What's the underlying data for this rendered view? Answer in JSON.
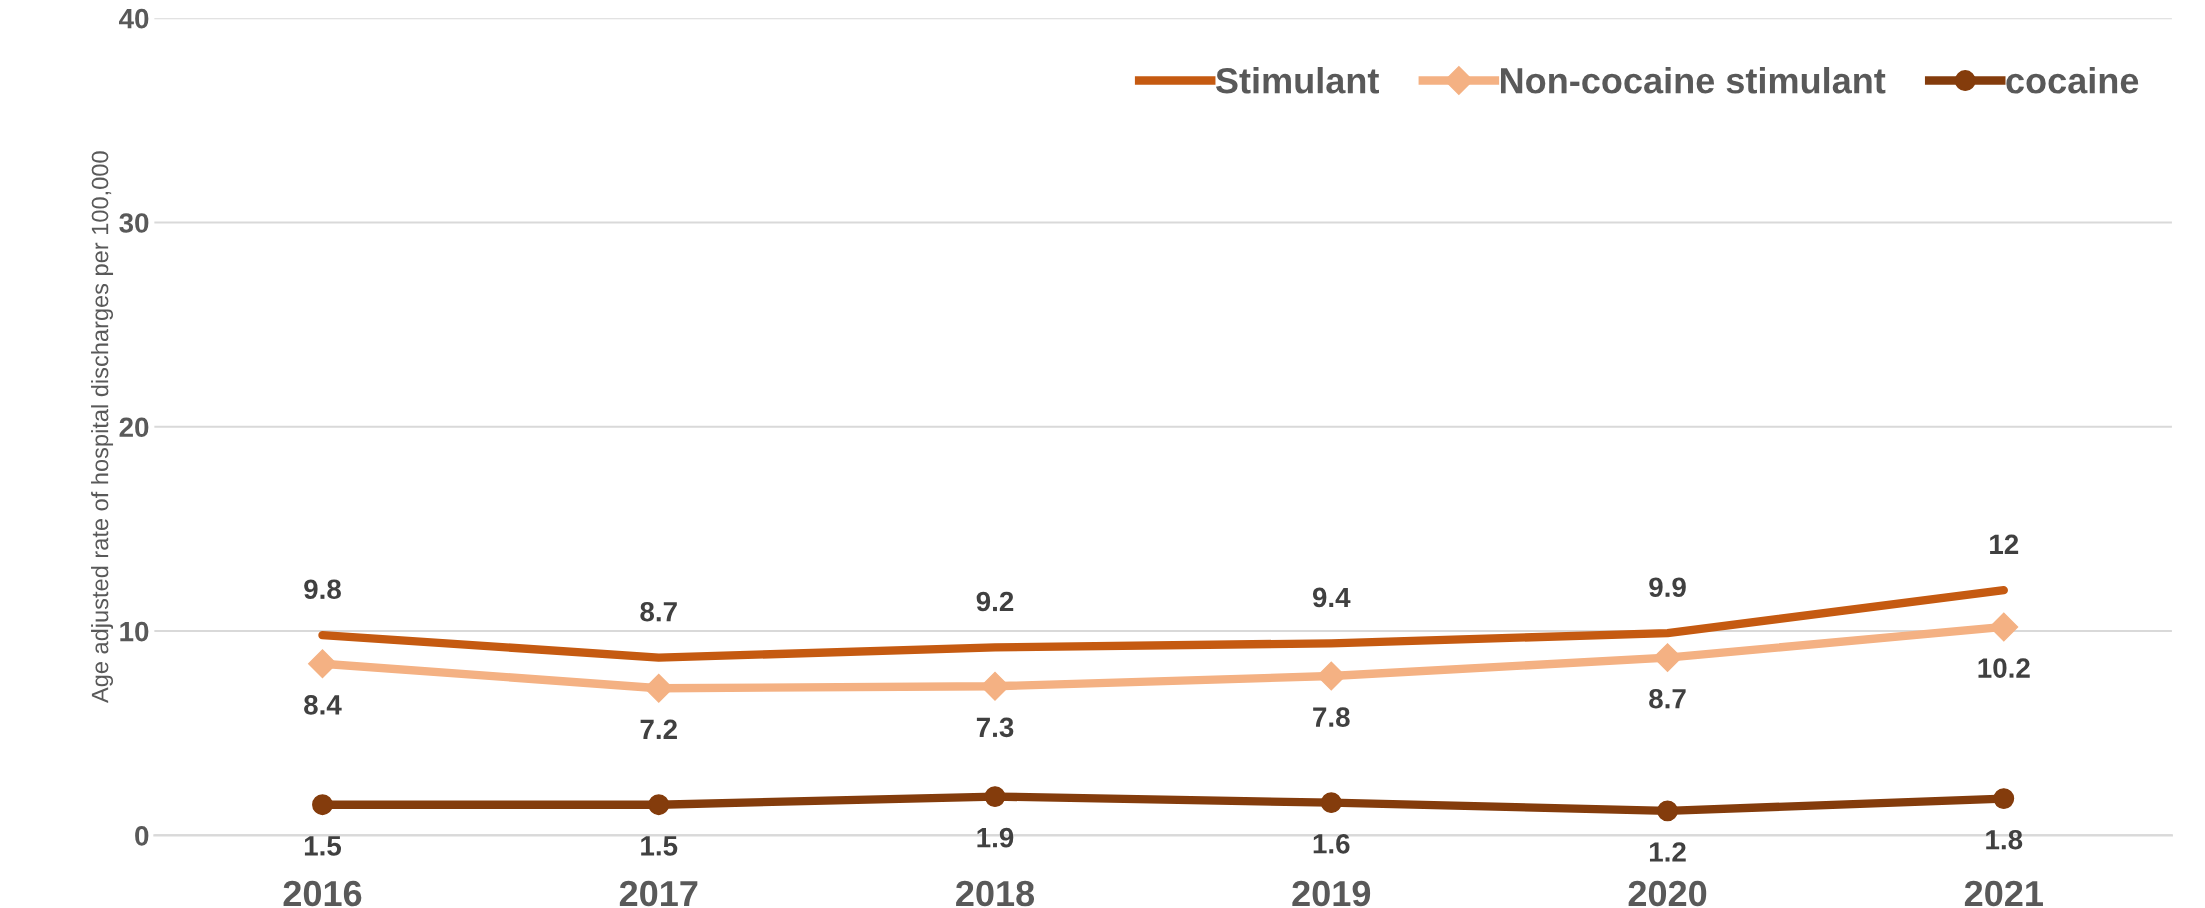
{
  "chart_data": {
    "type": "line",
    "ylabel": "Age adjusted rate of hospital discharges per 100,000",
    "categories": [
      "2016",
      "2017",
      "2018",
      "2019",
      "2020",
      "2021"
    ],
    "series": [
      {
        "name": "Stimulant",
        "color": "#c55a11",
        "marker": "none",
        "values": [
          9.8,
          8.7,
          9.2,
          9.4,
          9.9,
          12
        ]
      },
      {
        "name": "Non-cocaine stimulant",
        "color": "#f4b183",
        "marker": "diamond",
        "values": [
          8.4,
          7.2,
          7.3,
          7.8,
          8.7,
          10.2
        ]
      },
      {
        "name": "cocaine",
        "color": "#843c0c",
        "marker": "circle",
        "values": [
          1.5,
          1.5,
          1.9,
          1.6,
          1.2,
          1.8
        ]
      }
    ],
    "ylim": [
      0,
      40
    ],
    "yticks": [
      0,
      10,
      20,
      30,
      40
    ],
    "grid": "y",
    "legend": "top right",
    "data_labels": true,
    "line_style": "solid"
  }
}
